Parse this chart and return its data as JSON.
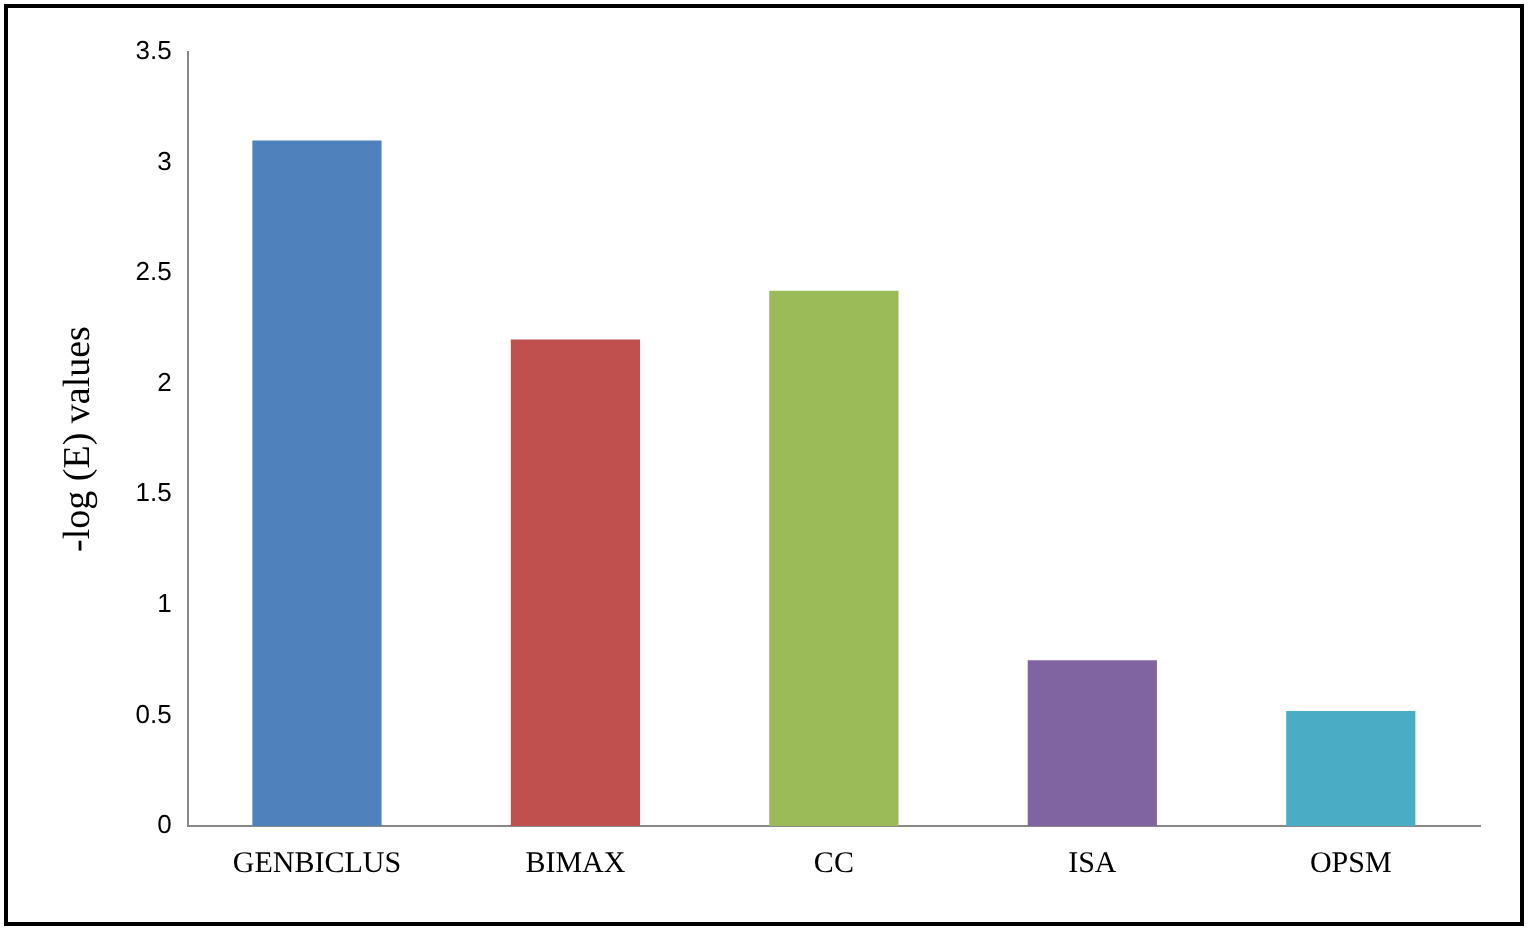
{
  "chart_data": {
    "type": "bar",
    "ylabel": "-log (E) values",
    "categories": [
      "GENBICLUS",
      "BIMAX",
      "CC",
      "ISA",
      "OPSM"
    ],
    "values": [
      3.1,
      2.2,
      2.42,
      0.75,
      0.52
    ],
    "colors": [
      "#4f81bd",
      "#c0504d",
      "#9bbb59",
      "#8064a2",
      "#4bacc6"
    ],
    "ylim": [
      0,
      3.5
    ],
    "yticks": [
      0,
      0.5,
      1,
      1.5,
      2,
      2.5,
      3,
      3.5
    ],
    "grid": false,
    "legend": false
  }
}
